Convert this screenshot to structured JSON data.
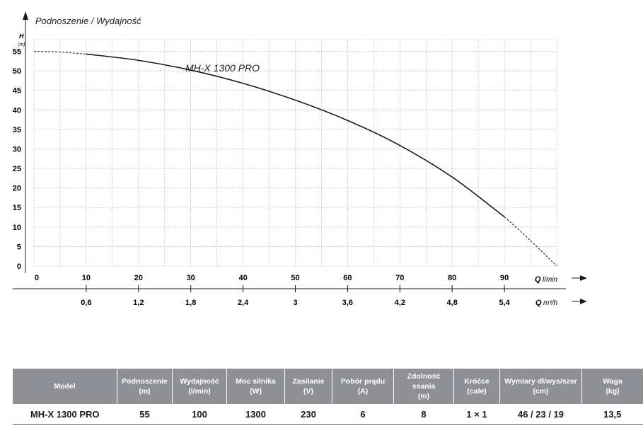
{
  "chart_data": {
    "type": "line",
    "title": "Podnoszenie / Wydajność",
    "y_axis": {
      "label": "H",
      "unit": "(m)",
      "ticks": [
        0,
        5,
        10,
        15,
        20,
        25,
        30,
        35,
        40,
        45,
        50,
        55
      ],
      "range": [
        0,
        58
      ]
    },
    "x_axis": {
      "label": "Q",
      "unit": "l/min",
      "ticks": [
        0,
        10,
        20,
        30,
        40,
        50,
        60,
        70,
        80,
        90
      ],
      "range": [
        0,
        100
      ]
    },
    "x_axis_secondary": {
      "label": "Q",
      "unit": "m³/h",
      "ticks": [
        {
          "at": 10,
          "label": "0,6"
        },
        {
          "at": 20,
          "label": "1,2"
        },
        {
          "at": 30,
          "label": "1,8"
        },
        {
          "at": 40,
          "label": "2,4"
        },
        {
          "at": 50,
          "label": "3"
        },
        {
          "at": 60,
          "label": "3,6"
        },
        {
          "at": 70,
          "label": "4,2"
        },
        {
          "at": 80,
          "label": "4,8"
        },
        {
          "at": 90,
          "label": "5,4"
        }
      ]
    },
    "grid": true,
    "series": [
      {
        "name": "MH-X 1300 PRO",
        "x": [
          0,
          5,
          10,
          20,
          30,
          40,
          50,
          60,
          70,
          80,
          90,
          95,
          100
        ],
        "y": [
          55,
          54.8,
          54.3,
          52.7,
          50.2,
          46.8,
          42.5,
          37.3,
          30.9,
          22.8,
          12.6,
          6.5,
          0
        ],
        "solid_range": [
          10,
          90
        ]
      }
    ]
  },
  "table": {
    "headers": [
      [
        "Model"
      ],
      [
        "Podnoszenie",
        "(m)"
      ],
      [
        "Wydajność",
        "(l/min)"
      ],
      [
        "Moc silnika",
        "(W)"
      ],
      [
        "Zasilanie",
        "(V)"
      ],
      [
        "Pobór prądu",
        "(A)"
      ],
      [
        "Zdolność ssania",
        "(m)"
      ],
      [
        "Króćce",
        "(cale)"
      ],
      [
        "Wymiary dł/wys/szer",
        "(cm)"
      ],
      [
        "Waga",
        "(kg)"
      ]
    ],
    "row": [
      "MH-X 1300 PRO",
      "55",
      "100",
      "1300",
      "230",
      "6",
      "8",
      "1 × 1",
      "46 / 23 / 19",
      "13,5"
    ]
  }
}
